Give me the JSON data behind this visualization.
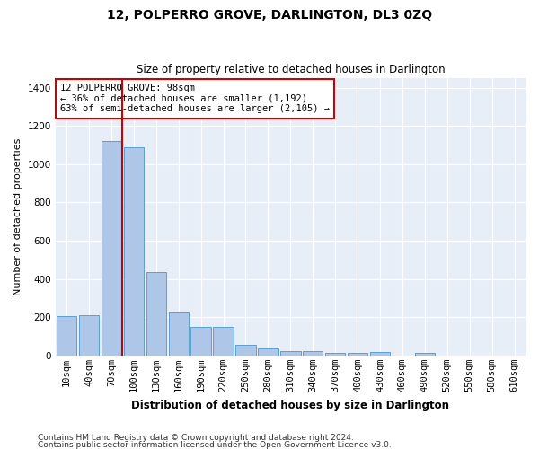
{
  "title": "12, POLPERRO GROVE, DARLINGTON, DL3 0ZQ",
  "subtitle": "Size of property relative to detached houses in Darlington",
  "xlabel": "Distribution of detached houses by size in Darlington",
  "ylabel": "Number of detached properties",
  "footnote1": "Contains HM Land Registry data © Crown copyright and database right 2024.",
  "footnote2": "Contains public sector information licensed under the Open Government Licence v3.0.",
  "categories": [
    "10sqm",
    "40sqm",
    "70sqm",
    "100sqm",
    "130sqm",
    "160sqm",
    "190sqm",
    "220sqm",
    "250sqm",
    "280sqm",
    "310sqm",
    "340sqm",
    "370sqm",
    "400sqm",
    "430sqm",
    "460sqm",
    "490sqm",
    "520sqm",
    "550sqm",
    "580sqm",
    "610sqm"
  ],
  "values": [
    205,
    210,
    1120,
    1090,
    435,
    230,
    148,
    148,
    57,
    37,
    25,
    22,
    12,
    12,
    17,
    0,
    15,
    0,
    0,
    0,
    0
  ],
  "bar_color": "#aec6e8",
  "bar_edge_color": "#5a9fd4",
  "bg_color": "#e8eef8",
  "grid_color": "#ffffff",
  "vline_x_index": 2,
  "vline_color": "#cc0000",
  "annotation_line1": "12 POLPERRO GROVE: 98sqm",
  "annotation_line2": "← 36% of detached houses are smaller (1,192)",
  "annotation_line3": "63% of semi-detached houses are larger (2,105) →",
  "annotation_box_color": "#cc0000",
  "ylim": [
    0,
    1450
  ],
  "yticks": [
    0,
    200,
    400,
    600,
    800,
    1000,
    1200,
    1400
  ],
  "title_fontsize": 10,
  "subtitle_fontsize": 8.5,
  "ylabel_fontsize": 8,
  "xlabel_fontsize": 8.5,
  "tick_fontsize": 7.5,
  "footnote_fontsize": 6.5
}
